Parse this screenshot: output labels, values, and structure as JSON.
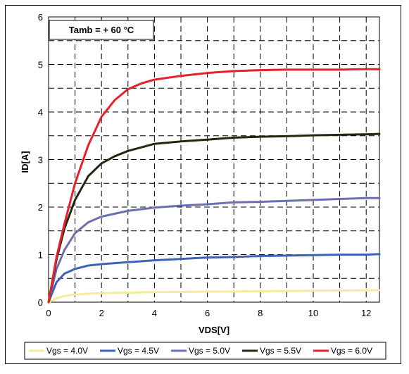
{
  "chart_data": {
    "type": "line",
    "annotation": "Tamb = + 60 °C",
    "xlabel": "VDS[V]",
    "ylabel": "ID[A]",
    "xlim": [
      0,
      12.5
    ],
    "ylim": [
      0,
      6
    ],
    "xticks": [
      0,
      2,
      4,
      6,
      8,
      10,
      12
    ],
    "yticks": [
      0,
      1,
      2,
      3,
      4,
      5,
      6
    ],
    "grid": true,
    "grid_style": "dashed",
    "legend_position": "bottom",
    "series": [
      {
        "name": "Vgs = 4.0V",
        "color": "#f4ec9a",
        "x": [
          0,
          0.3,
          0.6,
          1,
          1.5,
          2,
          3,
          4,
          6,
          8,
          10,
          12,
          12.5
        ],
        "y": [
          0,
          0.08,
          0.13,
          0.16,
          0.18,
          0.19,
          0.2,
          0.21,
          0.22,
          0.23,
          0.24,
          0.25,
          0.25
        ]
      },
      {
        "name": "Vgs = 4.5V",
        "color": "#3d63b8",
        "x": [
          0,
          0.3,
          0.6,
          1,
          1.5,
          2,
          3,
          4,
          5,
          6,
          7,
          8,
          9,
          10,
          11,
          12,
          12.5
        ],
        "y": [
          0,
          0.42,
          0.6,
          0.7,
          0.77,
          0.8,
          0.84,
          0.88,
          0.91,
          0.94,
          0.95,
          0.97,
          0.98,
          0.99,
          1.0,
          1.0,
          1.01
        ]
      },
      {
        "name": "Vgs = 5.0V",
        "color": "#6b6fb0",
        "x": [
          0,
          0.3,
          0.6,
          1,
          1.5,
          2,
          3,
          4,
          5,
          6,
          7,
          8,
          9,
          10,
          11,
          12,
          12.5
        ],
        "y": [
          0,
          0.7,
          1.1,
          1.45,
          1.68,
          1.8,
          1.92,
          1.99,
          2.03,
          2.06,
          2.1,
          2.11,
          2.13,
          2.15,
          2.17,
          2.19,
          2.19
        ]
      },
      {
        "name": "Vgs = 5.5V",
        "color": "#1e2a10",
        "x": [
          0,
          0.3,
          0.6,
          1,
          1.5,
          2,
          2.5,
          3,
          4,
          5,
          6,
          7,
          8,
          9,
          10,
          11,
          12,
          12.5
        ],
        "y": [
          0,
          0.9,
          1.55,
          2.15,
          2.65,
          2.92,
          3.07,
          3.18,
          3.33,
          3.38,
          3.42,
          3.46,
          3.48,
          3.49,
          3.51,
          3.52,
          3.53,
          3.54
        ]
      },
      {
        "name": "Vgs = 6.0V",
        "color": "#e8202a",
        "x": [
          0,
          0.3,
          0.6,
          1,
          1.5,
          2,
          2.5,
          3,
          3.5,
          4,
          5,
          6,
          7,
          8,
          9,
          10,
          11,
          12,
          12.5
        ],
        "y": [
          0,
          0.95,
          1.65,
          2.5,
          3.3,
          3.9,
          4.25,
          4.48,
          4.6,
          4.68,
          4.76,
          4.82,
          4.86,
          4.88,
          4.89,
          4.89,
          4.89,
          4.9,
          4.9
        ]
      }
    ]
  }
}
